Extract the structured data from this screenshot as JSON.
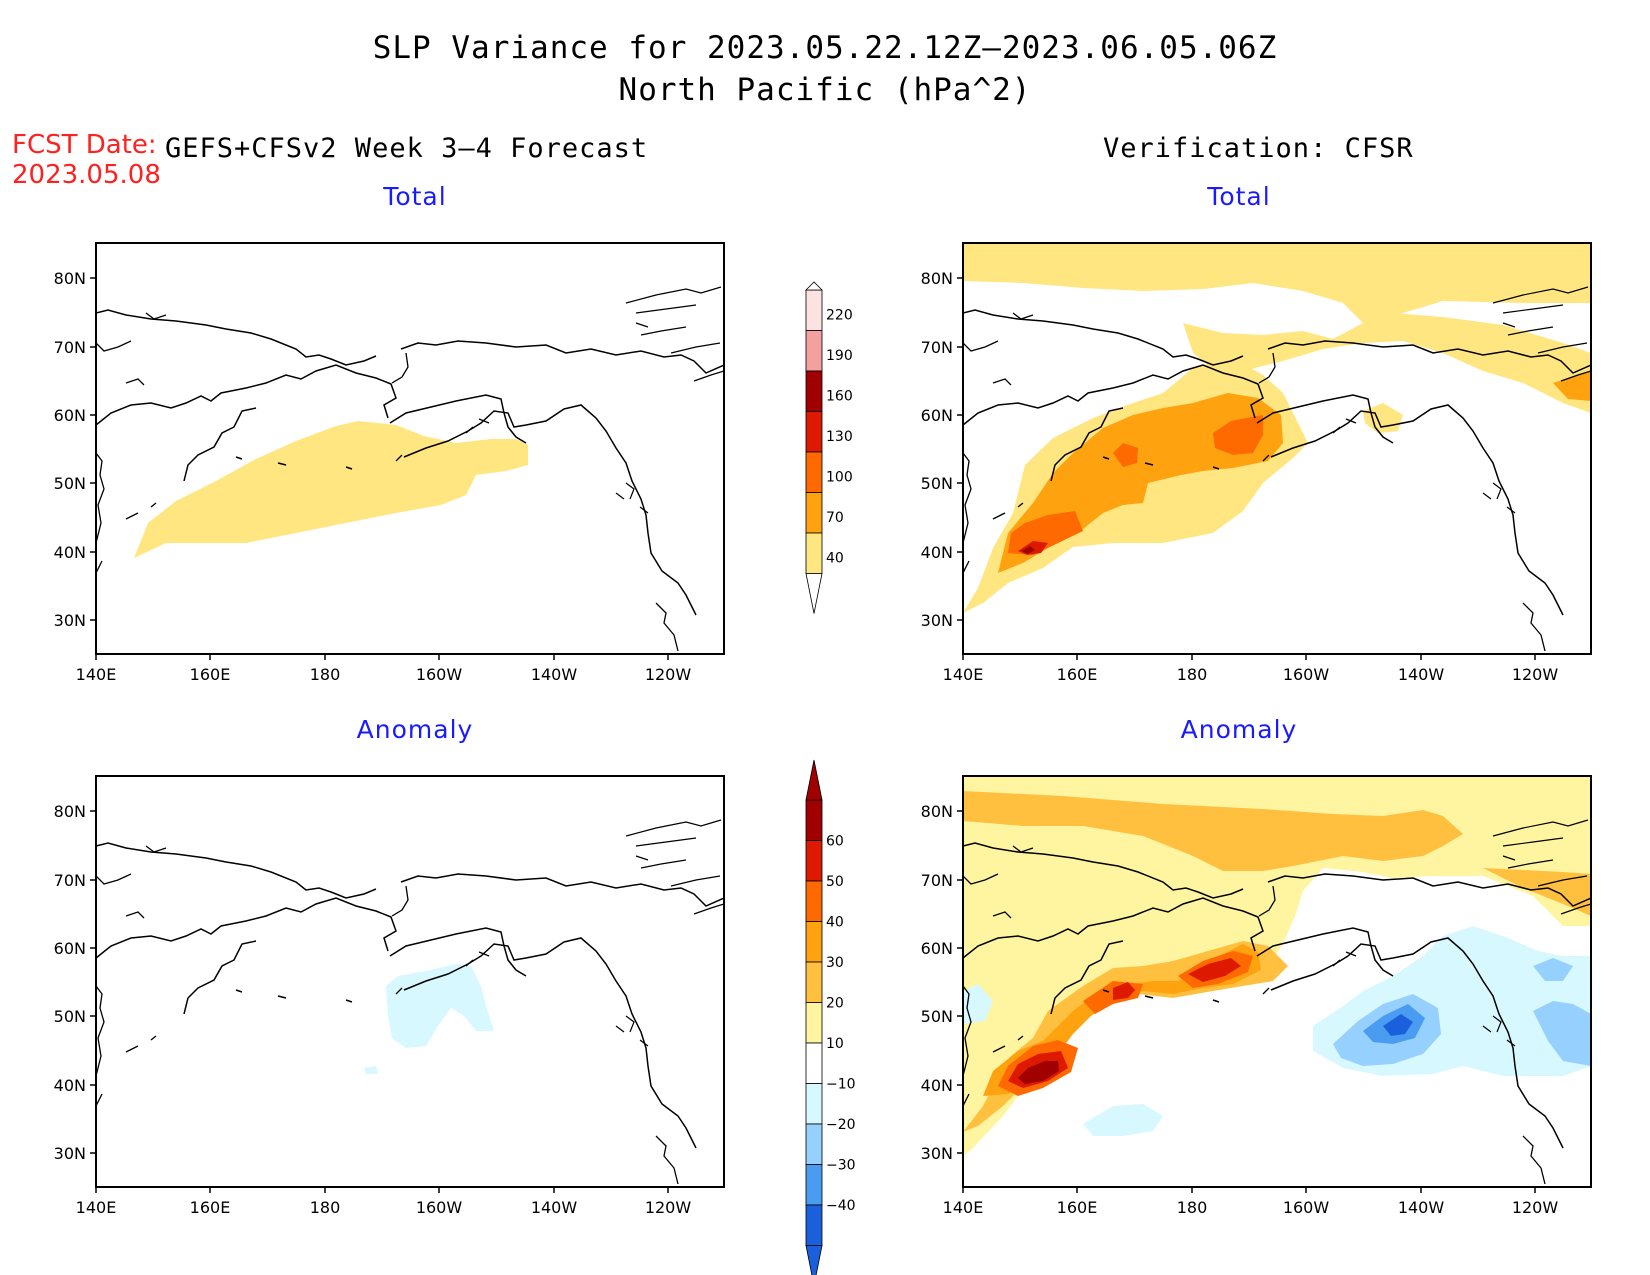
{
  "title": {
    "line1": "SLP Variance for 2023.05.22.12Z–2023.06.05.06Z",
    "line2": "North Pacific (hPa^2)"
  },
  "fcst": {
    "label": "FCST Date:",
    "date": "2023.05.08"
  },
  "left_header": "GEFS+CFSv2 Week 3–4 Forecast",
  "right_header": "Verification: CFSR",
  "panels": {
    "fcst_total": "Total",
    "fcst_anomaly": "Anomaly",
    "ver_total": "Total",
    "ver_anomaly": "Anomaly"
  },
  "axes": {
    "lat_labels": [
      "80N",
      "70N",
      "60N",
      "50N",
      "40N",
      "30N"
    ],
    "lon_labels": [
      "140E",
      "160E",
      "180",
      "160W",
      "140W",
      "120W"
    ]
  },
  "colorbars": {
    "total": {
      "levels": [
        "220",
        "190",
        "160",
        "130",
        "100",
        "70",
        "40"
      ],
      "colors": [
        "#fde2e2",
        "#f4a0a0",
        "#a00000",
        "#dd1a00",
        "#ff6a00",
        "#ffa210",
        "#ffe680"
      ]
    },
    "anomaly": {
      "levels": [
        "60",
        "50",
        "40",
        "30",
        "20",
        "10",
        "−10",
        "−20",
        "−30",
        "−40"
      ],
      "colors": [
        "#a00000",
        "#dd1a00",
        "#ff6a00",
        "#ffa210",
        "#ffc040",
        "#fff5a0",
        "#ffffff",
        "#d8f8ff",
        "#96d0ff",
        "#4a9cf0",
        "#1a60dd"
      ]
    }
  },
  "map_colors": {
    "c40": "#ffe680",
    "c70": "#ffa210",
    "c100": "#ff6a00",
    "c130": "#dd1a00",
    "c160": "#a00000",
    "a10": "#fff5a0",
    "a20": "#ffc040",
    "a30": "#ffa210",
    "a40": "#ff6a00",
    "a50": "#dd1a00",
    "a60": "#a00000",
    "n10": "#d8f8ff",
    "n20": "#96d0ff",
    "n30": "#4a9cf0",
    "n40": "#1a60dd"
  }
}
